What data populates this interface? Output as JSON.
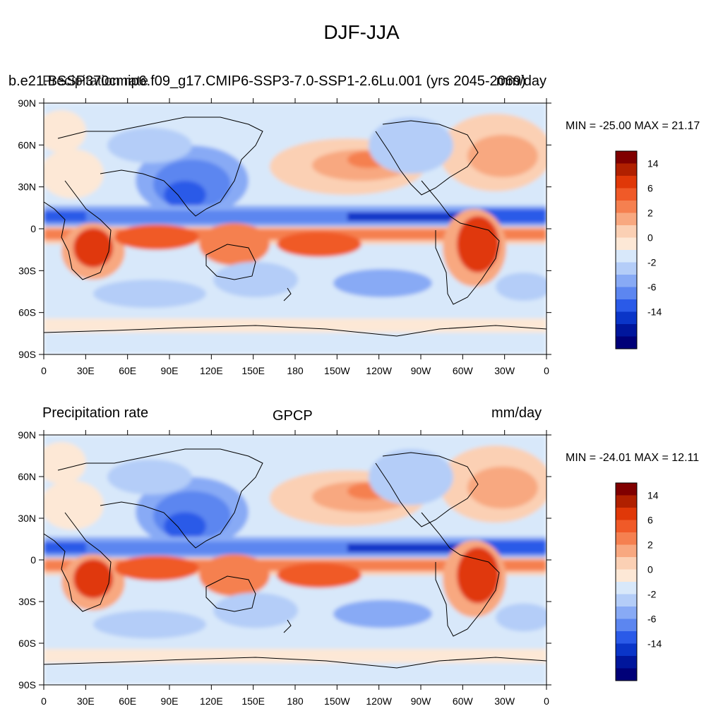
{
  "title": "DJF-JJA",
  "axis_ticks": {
    "lon": [
      "0",
      "30E",
      "60E",
      "90E",
      "120E",
      "150E",
      "180",
      "150W",
      "120W",
      "90W",
      "60W",
      "30W",
      "0"
    ],
    "lat": [
      "90N",
      "60N",
      "30N",
      "0",
      "30S",
      "60S",
      "90S"
    ]
  },
  "colorbar": {
    "labels": [
      "14",
      "6",
      "2",
      "0",
      "-2",
      "-6",
      "-14"
    ],
    "colors": [
      "#800000",
      "#b02000",
      "#e03808",
      "#f05a28",
      "#f58050",
      "#f8a880",
      "#fbd0b4",
      "#fde8d6",
      "#d8e8fa",
      "#b4cdf8",
      "#88aaf5",
      "#5c86f0",
      "#2a5ae8",
      "#0a35c8",
      "#00169c",
      "#000078"
    ]
  },
  "panels": [
    {
      "header_left": "b.e21.BSSP370cmip6.f09_g17.CMIP6-SSP3-7.0-SSP1-2.6Lu.001 (yrs 2045-2069)",
      "header_left_overlap": "Precipitation rate",
      "header_center": "",
      "header_right": "mm/day",
      "minmax": "MIN = -25.00 MAX =  21.17"
    },
    {
      "header_left": "Precipitation rate",
      "header_center": "GPCP",
      "header_right": "mm/day",
      "minmax": "MIN = -24.01 MAX =  12.11"
    }
  ]
}
